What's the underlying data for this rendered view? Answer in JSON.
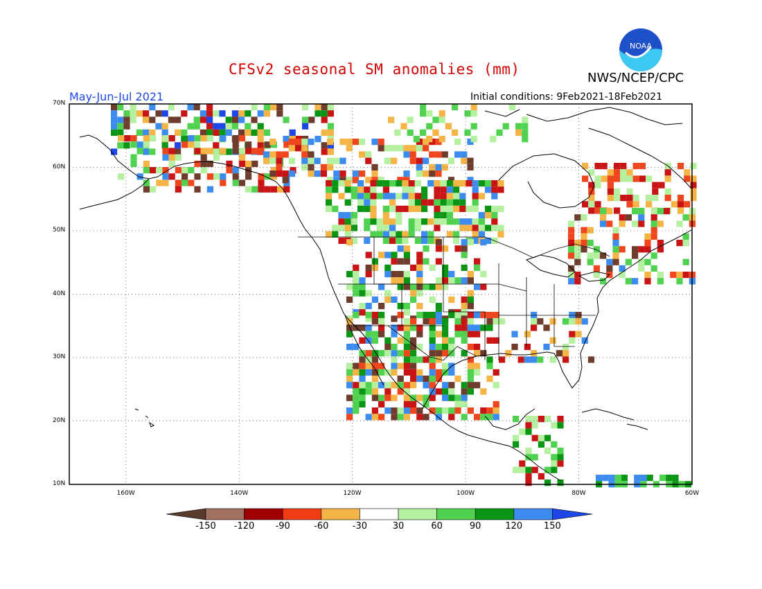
{
  "title": "CFSv2 seasonal SM anomalies (mm)",
  "agency": "NWS/NCEP/CPC",
  "season": "May-Jun-Jul 2021",
  "initial_conditions": "Initial conditions: 9Feb2021-18Feb2021",
  "logo_text": "NOAA",
  "lat_labels": [
    "70N",
    "60N",
    "50N",
    "40N",
    "30N",
    "20N",
    "10N"
  ],
  "lon_labels": [
    "160W",
    "140W",
    "120W",
    "100W",
    "80W",
    "60W"
  ],
  "colorbar": {
    "ticks": [
      "-150",
      "-120",
      "-90",
      "-60",
      "-30",
      "30",
      "60",
      "90",
      "120",
      "150"
    ],
    "colors": [
      "#5a3a2a",
      "#a07060",
      "#a00000",
      "#f03c14",
      "#f5b446",
      "#ffffff",
      "#b4f0a0",
      "#50d250",
      "#0a9614",
      "#3c8cf0",
      "#1e46e6"
    ]
  },
  "map_colors": {
    "brown": "#6e3c2d",
    "red": "#c81414",
    "orange": "#f0461e",
    "yellow": "#f5b446",
    "lightgreen": "#b4f0a0",
    "green": "#50d250",
    "darkgreen": "#0a9614",
    "blue": "#3c8cf0",
    "darkblue": "#1e46e6"
  }
}
